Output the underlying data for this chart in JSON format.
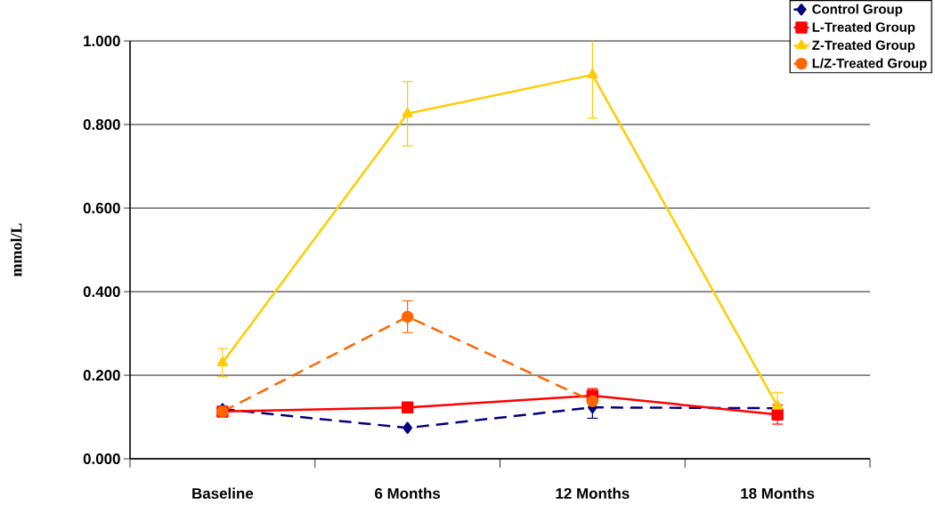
{
  "chart_data": {
    "type": "line",
    "ylabel": "mmol/L",
    "categories": [
      "Baseline",
      "6 Months",
      "12 Months",
      "18 Months"
    ],
    "series": [
      {
        "name": "Control Group",
        "color": "#000080",
        "marker": "diamond",
        "line_style": "dashed",
        "values": [
          0.119,
          0.074,
          0.123,
          0.121
        ],
        "errors": [
          null,
          null,
          0.026,
          null
        ]
      },
      {
        "name": "L-Treated Group",
        "color": "#ff0000",
        "marker": "square",
        "line_style": "solid",
        "values": [
          0.113,
          0.123,
          0.151,
          0.106
        ],
        "errors": [
          null,
          null,
          0.017,
          0.023
        ]
      },
      {
        "name": "Z-Treated Group",
        "color": "#ffcc00",
        "marker": "triangle",
        "line_style": "solid",
        "values": [
          0.23,
          0.826,
          0.919,
          0.126
        ],
        "errors": [
          0.034,
          0.077,
          0.104,
          0.033
        ]
      },
      {
        "name": "L/Z-Treated Group",
        "color": "#ff6600",
        "marker": "circle",
        "line_style": "dashed",
        "values": [
          0.113,
          0.34,
          0.138,
          null
        ],
        "errors": [
          null,
          0.038,
          null,
          null
        ]
      }
    ],
    "ylim": [
      0,
      1.0
    ],
    "yticks": [
      {
        "value": 0,
        "label": "0.000"
      },
      {
        "value": 0.2,
        "label": "0.200"
      },
      {
        "value": 0.4,
        "label": "0.400"
      },
      {
        "value": 0.6,
        "label": "0.600"
      },
      {
        "value": 0.8,
        "label": "0.800"
      },
      {
        "value": 1.0,
        "label": "1.000"
      }
    ],
    "grid": "y",
    "legend": "top right"
  }
}
